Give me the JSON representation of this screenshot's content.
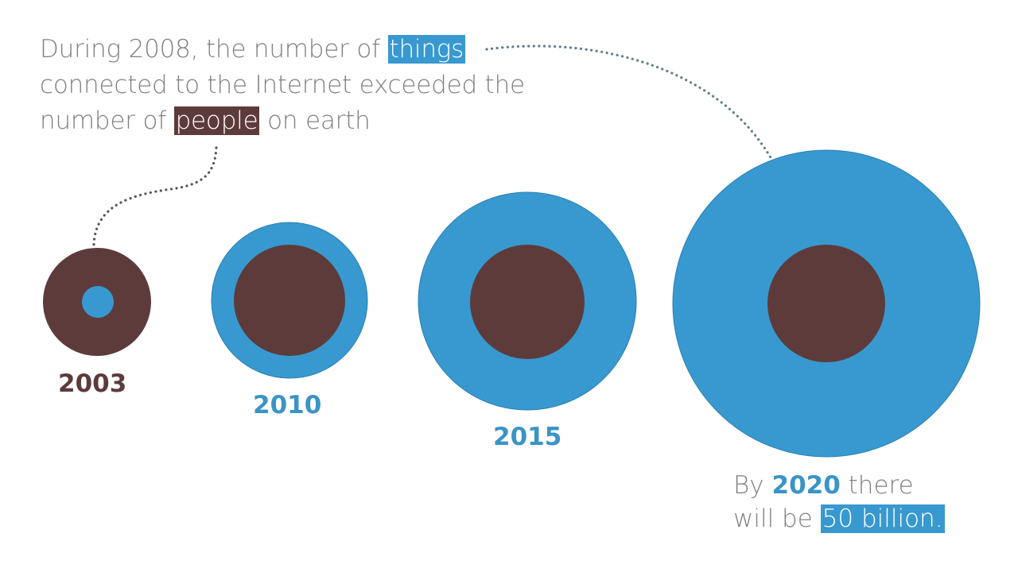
{
  "headline": {
    "line1_before": "During 2008, the number of ",
    "things": "things",
    "line2": "connected to the Internet exceeded the",
    "line3_before": "number of ",
    "people": "people",
    "line3_after": " on earth"
  },
  "circles": [
    {
      "year": "2003",
      "outer": "people",
      "inner": "things"
    },
    {
      "year": "2010",
      "outer": "things",
      "inner": "people"
    },
    {
      "year": "2015",
      "outer": "things",
      "inner": "people"
    },
    {
      "year": "2020",
      "outer": "things",
      "inner": "people"
    }
  ],
  "footer": {
    "prefix": "By ",
    "year": "2020",
    "suffix": " there",
    "line2_before": "will be ",
    "count": "50 billion."
  },
  "colors": {
    "things": "#3899d0",
    "people": "#5e3b3b",
    "text": "#808080",
    "connector": "#5f7e8e"
  }
}
